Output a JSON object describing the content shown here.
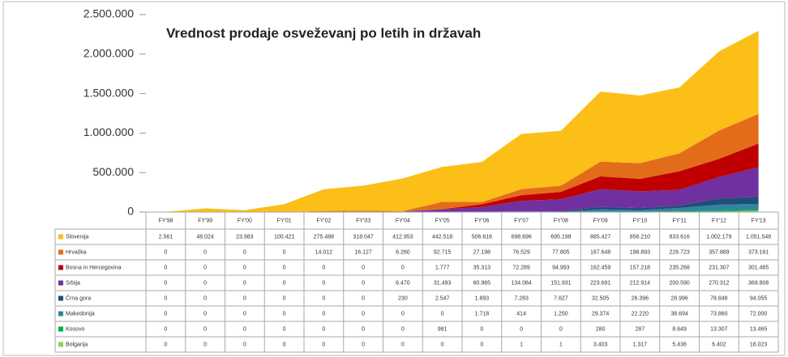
{
  "chart_data": {
    "type": "stacked_area",
    "title": "Vrednost prodaje osveževanj po letih in državah",
    "categories": [
      "FY'98",
      "FY'99",
      "FY'00",
      "FY'01",
      "FY'02",
      "FY'03",
      "FY'04",
      "FY'05",
      "FY'06",
      "FY'07",
      "FY'08",
      "FY'09",
      "FY'10",
      "FY'11",
      "FY'12",
      "FY'13"
    ],
    "ylim": [
      0,
      2500000
    ],
    "yticks": [
      0,
      {
        "value": 500000,
        "label": "500.000"
      },
      {
        "value": 1000000,
        "label": "1.000.000"
      },
      {
        "value": 1500000,
        "label": "1.500.000"
      },
      {
        "value": 2000000,
        "label": "2.000.000"
      },
      {
        "value": 2500000,
        "label": "2.500.000"
      }
    ],
    "series": [
      {
        "name": "Slovenija",
        "color": "#fbbf17",
        "values": [
          2561,
          48024,
          23983,
          100421,
          275488,
          318047,
          412953,
          442518,
          506616,
          698696,
          695198,
          885427,
          856210,
          833616,
          1002179,
          1051548
        ],
        "value_labels": [
          "2.561",
          "48.024",
          "23.983",
          "100.421",
          "275.488",
          "318.047",
          "412.953",
          "442.518",
          "506.616",
          "698.696",
          "695.198",
          "885.427",
          "856.210",
          "833.616",
          "1.002.179",
          "1.051.548"
        ]
      },
      {
        "name": "Hrvaška",
        "color": "#e36c1b",
        "values": [
          0,
          0,
          0,
          0,
          14012,
          16127,
          6260,
          92715,
          27198,
          76529,
          77805,
          187648,
          198893,
          226723,
          357889,
          373161
        ],
        "value_labels": [
          "0",
          "0",
          "0",
          "0",
          "14.012",
          "16.127",
          "6.260",
          "92.715",
          "27.198",
          "76.529",
          "77.805",
          "187.648",
          "198.893",
          "226.723",
          "357.889",
          "373.161"
        ]
      },
      {
        "name": "Bosna in Hercegovina",
        "color": "#c00000",
        "values": [
          0,
          0,
          0,
          0,
          0,
          0,
          0,
          1777,
          35313,
          72289,
          94993,
          162459,
          157218,
          235268,
          231307,
          301465
        ],
        "value_labels": [
          "0",
          "0",
          "0",
          "0",
          "0",
          "0",
          "0",
          "1.777",
          "35.313",
          "72.289",
          "94.993",
          "162.459",
          "157.218",
          "235.268",
          "231.307",
          "301.465"
        ]
      },
      {
        "name": "Srbija",
        "color": "#7030a0",
        "values": [
          0,
          0,
          0,
          0,
          0,
          0,
          6470,
          31493,
          60965,
          134084,
          151931,
          223691,
          212914,
          200590,
          270312,
          369808
        ],
        "value_labels": [
          "0",
          "0",
          "0",
          "0",
          "0",
          "0",
          "6.470",
          "31.493",
          "60.965",
          "134.084",
          "151.931",
          "223.691",
          "212.914",
          "200.590",
          "270.312",
          "369.808"
        ]
      },
      {
        "name": "Črna gora",
        "color": "#1f4e79",
        "values": [
          0,
          0,
          0,
          0,
          0,
          0,
          230,
          2547,
          1893,
          7283,
          7627,
          32505,
          26396,
          28996,
          78848,
          94055
        ],
        "value_labels": [
          "0",
          "0",
          "0",
          "0",
          "0",
          "0",
          "230",
          "2.547",
          "1.893",
          "7.283",
          "7.627",
          "32.505",
          "26.396",
          "28.996",
          "78.848",
          "94.055"
        ]
      },
      {
        "name": "Makedonija",
        "color": "#31859c",
        "values": [
          0,
          0,
          0,
          0,
          0,
          0,
          0,
          0,
          1718,
          414,
          1250,
          29374,
          22220,
          38694,
          73860,
          72000
        ],
        "value_labels": [
          "0",
          "0",
          "0",
          "0",
          "0",
          "0",
          "0",
          "0",
          "1.718",
          "414",
          "1.250",
          "29.374",
          "22.220",
          "38.694",
          "73.860",
          "72.000"
        ]
      },
      {
        "name": "Kosovo",
        "color": "#00b050",
        "values": [
          0,
          0,
          0,
          0,
          0,
          0,
          0,
          981,
          0,
          0,
          0,
          280,
          287,
          8649,
          13307,
          13465
        ],
        "value_labels": [
          "0",
          "0",
          "0",
          "0",
          "0",
          "0",
          "0",
          "981",
          "0",
          "0",
          "0",
          "280",
          "287",
          "8.649",
          "13.307",
          "13.465"
        ]
      },
      {
        "name": "Bolgarija",
        "color": "#92d050",
        "values": [
          0,
          0,
          0,
          0,
          0,
          0,
          0,
          0,
          0,
          1,
          1,
          3403,
          1317,
          5436,
          6402,
          18023
        ],
        "value_labels": [
          "0",
          "0",
          "0",
          "0",
          "0",
          "0",
          "0",
          "0",
          "0",
          "1",
          "1",
          "3.403",
          "1.317",
          "5.436",
          "6.402",
          "18.023"
        ]
      }
    ]
  }
}
